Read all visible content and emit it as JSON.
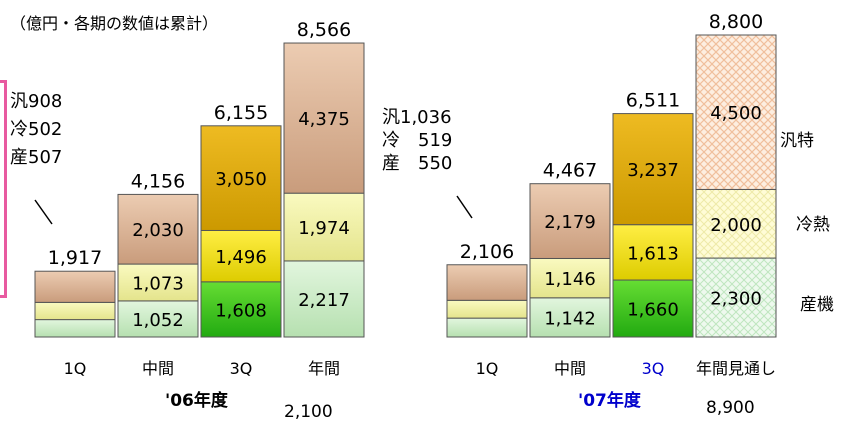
{
  "unit_note": "（億円・各期の数値は累計）",
  "years": [
    {
      "label": "'06年度",
      "color": "#000000"
    },
    {
      "label": "'07年度",
      "color": "#0000cc"
    }
  ],
  "legend": [
    "汎特",
    "冷熱",
    "産機"
  ],
  "breakdown_06": [
    "汎908",
    "冷502",
    "産507"
  ],
  "breakdown_07": [
    "汎1,036",
    "冷　519",
    "産　550"
  ],
  "cut_off_values": [
    "2,100",
    "8,900"
  ],
  "chart_data": {
    "type": "bar",
    "stacked": true,
    "title": "",
    "series_order_bottom_to_top": [
      "産機",
      "冷熱",
      "汎特"
    ],
    "groups": [
      {
        "year": "'06年度",
        "bars": [
          {
            "category": "1Q",
            "category_color": "#000000",
            "total": "1,917",
            "total_value": 1917,
            "style": "small",
            "segments": [
              {
                "value": 507,
                "label": ""
              },
              {
                "value": 502,
                "label": ""
              },
              {
                "value": 908,
                "label": ""
              }
            ]
          },
          {
            "category": "中間",
            "category_color": "#000000",
            "total": "4,156",
            "total_value": 4156,
            "style": "normal",
            "segments": [
              {
                "value": 1052,
                "label": "1,052"
              },
              {
                "value": 1073,
                "label": "1,073"
              },
              {
                "value": 2030,
                "label": "2,030"
              }
            ]
          },
          {
            "category": "3Q",
            "category_color": "#000000",
            "total": "6,155",
            "total_value": 6155,
            "style": "highlight",
            "segments": [
              {
                "value": 1608,
                "label": "1,608"
              },
              {
                "value": 1496,
                "label": "1,496"
              },
              {
                "value": 3050,
                "label": "3,050"
              }
            ]
          },
          {
            "category": "年間",
            "category_color": "#000000",
            "total": "8,566",
            "total_value": 8566,
            "style": "normal",
            "segments": [
              {
                "value": 2217,
                "label": "2,217"
              },
              {
                "value": 1974,
                "label": "1,974"
              },
              {
                "value": 4375,
                "label": "4,375"
              }
            ]
          }
        ]
      },
      {
        "year": "'07年度",
        "bars": [
          {
            "category": "1Q",
            "category_color": "#000000",
            "total": "2,106",
            "total_value": 2106,
            "style": "small",
            "segments": [
              {
                "value": 550,
                "label": ""
              },
              {
                "value": 519,
                "label": ""
              },
              {
                "value": 1036,
                "label": ""
              }
            ]
          },
          {
            "category": "中間",
            "category_color": "#000000",
            "total": "4,467",
            "total_value": 4467,
            "style": "normal",
            "segments": [
              {
                "value": 1142,
                "label": "1,142"
              },
              {
                "value": 1146,
                "label": "1,146"
              },
              {
                "value": 2179,
                "label": "2,179"
              }
            ]
          },
          {
            "category": "3Q",
            "category_color": "#0000cc",
            "total": "6,511",
            "total_value": 6511,
            "style": "highlight",
            "segments": [
              {
                "value": 1660,
                "label": "1,660"
              },
              {
                "value": 1613,
                "label": "1,613"
              },
              {
                "value": 3237,
                "label": "3,237"
              }
            ]
          },
          {
            "category": "年間見通し",
            "category_color": "#000000",
            "total": "8,800",
            "total_value": 8800,
            "style": "forecast",
            "segments": [
              {
                "value": 2300,
                "label": "2,300"
              },
              {
                "value": 2000,
                "label": "2,000"
              },
              {
                "value": 4500,
                "label": "4,500"
              }
            ]
          }
        ]
      }
    ],
    "colors": {
      "normal": [
        "#c8ebc4",
        "#f0f0a0",
        "#ddb89a"
      ],
      "highlight": [
        "#44cc22",
        "#eedd00",
        "#ddaa00"
      ],
      "forecast": [
        "#eaf8ea",
        "#fffcd0",
        "#fce8d8"
      ],
      "small": [
        "#c8ebc4",
        "#f0f0a0",
        "#ddb89a"
      ]
    }
  }
}
